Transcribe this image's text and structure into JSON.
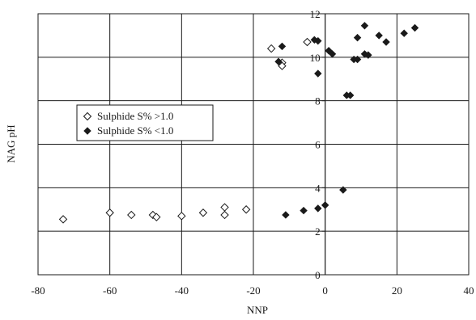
{
  "chart_data": {
    "type": "scatter",
    "xlabel": "NNP",
    "ylabel": "NAG pH",
    "xlim": [
      -80,
      40
    ],
    "ylim": [
      0,
      12
    ],
    "x_ticks": [
      -80,
      -60,
      -40,
      -20,
      0,
      20,
      40
    ],
    "y_ticks": [
      0,
      2,
      4,
      6,
      8,
      10,
      12
    ],
    "grid": true,
    "legend_position": "middle-left",
    "series": [
      {
        "name": "Sulphide S% >1.0",
        "marker": "open-diamond",
        "color": "#1a1a1a",
        "points": [
          [
            -73,
            2.55
          ],
          [
            -60,
            2.85
          ],
          [
            -54,
            2.75
          ],
          [
            -48,
            2.75
          ],
          [
            -47,
            2.65
          ],
          [
            -40,
            2.7
          ],
          [
            -34,
            2.85
          ],
          [
            -28,
            2.75
          ],
          [
            -28,
            3.1
          ],
          [
            -22,
            3.0
          ],
          [
            -15,
            10.4
          ],
          [
            -12,
            9.75
          ],
          [
            -12,
            9.6
          ],
          [
            -5,
            10.7
          ]
        ]
      },
      {
        "name": "Sulphide S% <1.0",
        "marker": "filled-diamond",
        "color": "#1a1a1a",
        "points": [
          [
            -13,
            9.8
          ],
          [
            -12,
            10.5
          ],
          [
            -11,
            2.75
          ],
          [
            -3,
            10.8
          ],
          [
            -2,
            10.75
          ],
          [
            -2,
            9.25
          ],
          [
            -6,
            2.95
          ],
          [
            -2,
            3.05
          ],
          [
            0,
            3.2
          ],
          [
            1,
            10.3
          ],
          [
            2,
            10.15
          ],
          [
            5,
            3.9
          ],
          [
            6,
            8.25
          ],
          [
            7,
            8.25
          ],
          [
            8,
            9.9
          ],
          [
            9,
            9.9
          ],
          [
            9,
            10.9
          ],
          [
            11,
            11.45
          ],
          [
            11,
            10.15
          ],
          [
            12,
            10.1
          ],
          [
            15,
            11.0
          ],
          [
            17,
            10.7
          ],
          [
            22,
            11.1
          ],
          [
            25,
            11.35
          ]
        ]
      }
    ]
  }
}
